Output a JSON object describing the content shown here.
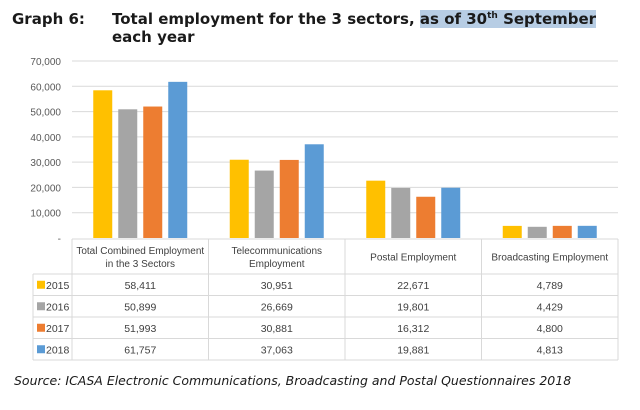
{
  "title": {
    "label": "Graph 6:",
    "text_plain": "Total employment for the 3 sectors, ",
    "text_highlight_1": "as of 30",
    "text_sup": "th",
    "text_highlight_2": " September",
    "text_line2": "each year"
  },
  "source": "Source: ICASA Electronic Communications, Broadcasting and Postal Questionnaires 2018",
  "chart_data": {
    "type": "bar",
    "title": "Total employment for the 3 sectors, as of 30th September each year",
    "xlabel": "",
    "ylabel": "",
    "ylim": [
      0,
      70000
    ],
    "yticks": [
      0,
      10000,
      20000,
      30000,
      40000,
      50000,
      60000,
      70000
    ],
    "ytick_labels": [
      "-",
      "10,000",
      "20,000",
      "30,000",
      "40,000",
      "50,000",
      "60,000",
      "70,000"
    ],
    "grid": true,
    "legend_position": "data-table-left",
    "categories": [
      [
        "Total Combined Employment",
        "in the 3 Sectors"
      ],
      [
        "Telecommunications",
        "Employment"
      ],
      [
        "Postal Employment"
      ],
      [
        "Broadcasting Employment"
      ]
    ],
    "series": [
      {
        "name": "2015",
        "color": "#FFC000",
        "values": [
          58411,
          30951,
          22671,
          4789
        ],
        "labels": [
          "58,411",
          "30,951",
          "22,671",
          "4,789"
        ]
      },
      {
        "name": "2016",
        "color": "#A5A5A5",
        "values": [
          50899,
          26669,
          19801,
          4429
        ],
        "labels": [
          "50,899",
          "26,669",
          "19,801",
          "4,429"
        ]
      },
      {
        "name": "2017",
        "color": "#ED7D31",
        "values": [
          51993,
          30881,
          16312,
          4800
        ],
        "labels": [
          "51,993",
          "30,881",
          "16,312",
          "4,800"
        ]
      },
      {
        "name": "2018",
        "color": "#5B9BD5",
        "values": [
          61757,
          37063,
          19881,
          4813
        ],
        "labels": [
          "61,757",
          "37,063",
          "19,881",
          "4,813"
        ]
      }
    ]
  }
}
